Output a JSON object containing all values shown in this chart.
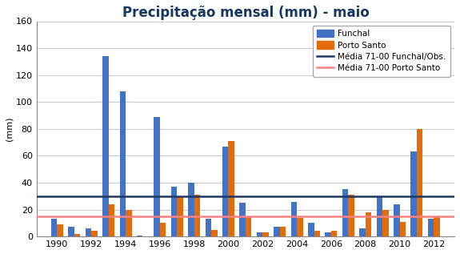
{
  "title": "Precipitação mensal (mm) - maio",
  "ylabel": "(mm)",
  "ylim": [
    0,
    160
  ],
  "yticks": [
    0,
    20,
    40,
    60,
    80,
    100,
    120,
    140,
    160
  ],
  "years": [
    1990,
    1991,
    1992,
    1993,
    1994,
    1995,
    1996,
    1997,
    1998,
    1999,
    2000,
    2001,
    2002,
    2003,
    2004,
    2005,
    2006,
    2007,
    2008,
    2009,
    2010,
    2011,
    2012
  ],
  "funchal": [
    13,
    7,
    6,
    134,
    108,
    1,
    89,
    37,
    40,
    13,
    67,
    25,
    3,
    7,
    26,
    10,
    3,
    35,
    6,
    29,
    24,
    63,
    13
  ],
  "porto_santo": [
    9,
    2,
    4,
    24,
    20,
    0,
    10,
    30,
    31,
    5,
    71,
    15,
    3,
    7,
    14,
    4,
    4,
    31,
    18,
    20,
    11,
    80,
    15
  ],
  "media_funchal": 30,
  "media_porto_santo": 15,
  "bar_color_funchal": "#4472C4",
  "bar_color_porto_santo": "#E36C09",
  "line_color_funchal": "#1F3864",
  "line_color_porto_santo": "#FF8080",
  "title_fontsize": 12,
  "label_fontsize": 8,
  "legend_funchal": "Funchal",
  "legend_porto_santo": "Porto Santo",
  "legend_media_funchal": "Média 71-00 Funchal/Obs.",
  "legend_media_porto_santo": "Média 71-00 Porto Santo",
  "xtick_years": [
    1990,
    1992,
    1994,
    1996,
    1998,
    2000,
    2002,
    2004,
    2006,
    2008,
    2010,
    2012
  ],
  "bar_width": 0.35,
  "xlim_left": 1988.8,
  "xlim_right": 2013.2
}
